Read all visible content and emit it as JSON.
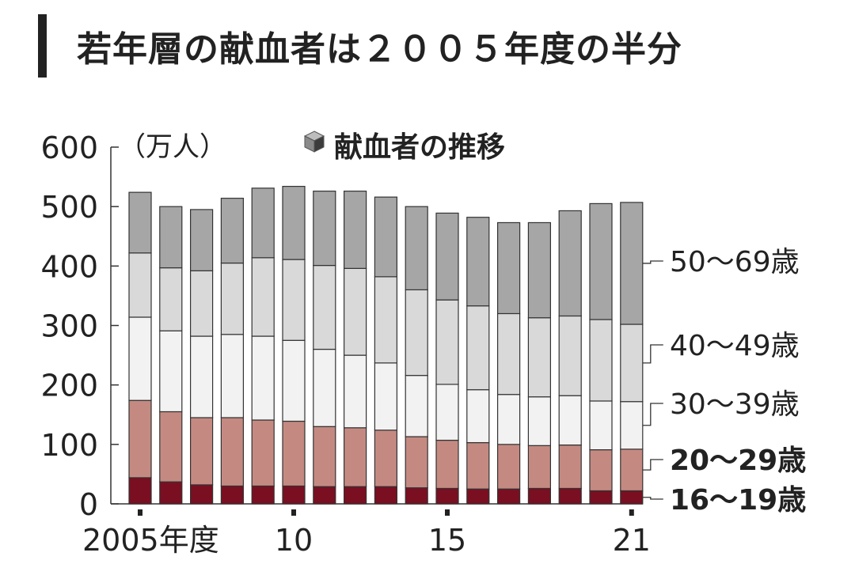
{
  "headline": "若年層の献血者は２００５年度の半分",
  "chart_data": {
    "type": "bar",
    "stacked": true,
    "title": "献血者の推移",
    "title_icon": "cube-icon",
    "ylabel": "（万人）",
    "ylim": [
      0,
      600
    ],
    "yticks": [
      "0",
      "100",
      "200",
      "300",
      "400",
      "500",
      "600"
    ],
    "x": [
      2005,
      2006,
      2007,
      2008,
      2009,
      2010,
      2011,
      2012,
      2013,
      2014,
      2015,
      2016,
      2017,
      2018,
      2019,
      2020,
      2021
    ],
    "xtick_labels": [
      {
        "x": 2005,
        "label": "2005年度"
      },
      {
        "x": 2010,
        "label": "10"
      },
      {
        "x": 2015,
        "label": "15"
      },
      {
        "x": 2021,
        "label": "21"
      }
    ],
    "series": [
      {
        "name": "16〜19歳",
        "color": "#7a0f22",
        "bold": true,
        "values": [
          44,
          37,
          32,
          30,
          30,
          30,
          29,
          29,
          29,
          27,
          26,
          25,
          25,
          26,
          26,
          22,
          22
        ]
      },
      {
        "name": "20〜29歳",
        "color": "#c48a82",
        "bold": true,
        "values": [
          130,
          118,
          113,
          115,
          111,
          109,
          101,
          99,
          95,
          86,
          81,
          78,
          75,
          72,
          73,
          69,
          70
        ]
      },
      {
        "name": "30〜39歳",
        "color": "#f2f2f2",
        "bold": false,
        "values": [
          140,
          136,
          137,
          140,
          141,
          136,
          130,
          122,
          113,
          103,
          94,
          89,
          84,
          82,
          83,
          82,
          80
        ]
      },
      {
        "name": "40〜49歳",
        "color": "#d9d9d9",
        "bold": false,
        "values": [
          108,
          106,
          110,
          120,
          132,
          136,
          141,
          146,
          145,
          144,
          142,
          141,
          136,
          133,
          134,
          137,
          130
        ]
      },
      {
        "name": "50〜69歳",
        "color": "#a6a6a6",
        "bold": false,
        "values": [
          102,
          103,
          103,
          109,
          117,
          123,
          125,
          130,
          134,
          140,
          146,
          149,
          153,
          160,
          177,
          195,
          205
        ]
      }
    ]
  }
}
